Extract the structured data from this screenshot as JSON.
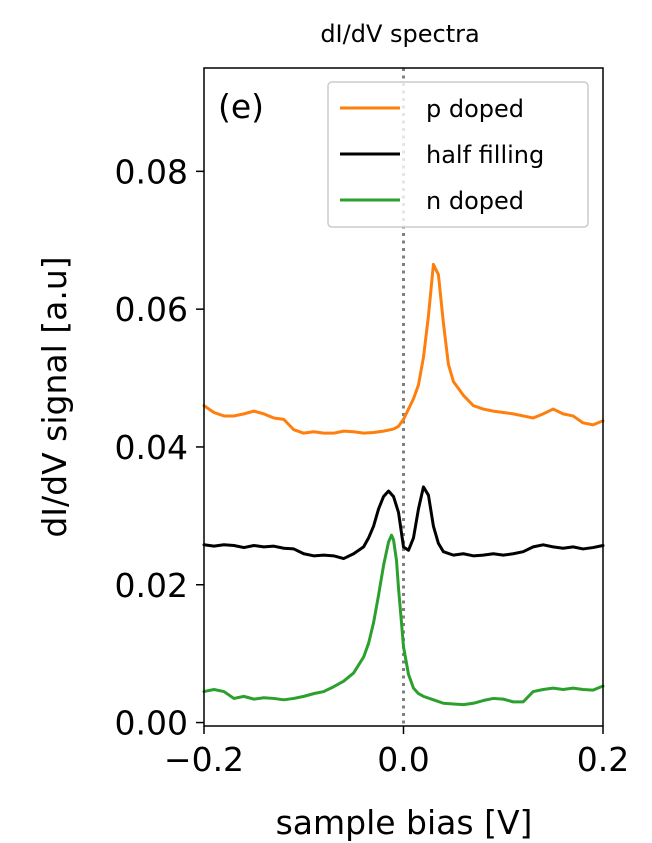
{
  "chart_data": {
    "type": "line",
    "title": "dI/dV spectra",
    "panel_label": "(e)",
    "xlabel": "sample bias [V]",
    "ylabel": "dI/dV signal [a.u]",
    "xlim": [
      -0.2,
      0.2
    ],
    "ylim": [
      -0.0005,
      0.095
    ],
    "xticks": [
      -0.2,
      0.0,
      0.2
    ],
    "xtick_labels": [
      "−0.2",
      "0.0",
      "0.2"
    ],
    "yticks": [
      0.0,
      0.02,
      0.04,
      0.06,
      0.08
    ],
    "ytick_labels": [
      "0.00",
      "0.02",
      "0.04",
      "0.06",
      "0.08"
    ],
    "grid": false,
    "legend_position": "top-right",
    "reference_line": {
      "x": 0.0,
      "style": "dotted",
      "color": "#808080"
    },
    "series": [
      {
        "name": "p doped",
        "color": "#ff7f0e",
        "points": [
          [
            -0.2,
            0.046
          ],
          [
            -0.19,
            0.045
          ],
          [
            -0.18,
            0.0445
          ],
          [
            -0.17,
            0.0445
          ],
          [
            -0.16,
            0.0448
          ],
          [
            -0.15,
            0.0452
          ],
          [
            -0.14,
            0.0448
          ],
          [
            -0.13,
            0.0442
          ],
          [
            -0.12,
            0.044
          ],
          [
            -0.11,
            0.0425
          ],
          [
            -0.1,
            0.042
          ],
          [
            -0.09,
            0.0422
          ],
          [
            -0.08,
            0.042
          ],
          [
            -0.07,
            0.042
          ],
          [
            -0.06,
            0.0423
          ],
          [
            -0.05,
            0.0422
          ],
          [
            -0.04,
            0.042
          ],
          [
            -0.03,
            0.0421
          ],
          [
            -0.02,
            0.0423
          ],
          [
            -0.01,
            0.0426
          ],
          [
            -0.005,
            0.043
          ],
          [
            0.0,
            0.044
          ],
          [
            0.005,
            0.0455
          ],
          [
            0.01,
            0.047
          ],
          [
            0.015,
            0.049
          ],
          [
            0.02,
            0.053
          ],
          [
            0.025,
            0.059
          ],
          [
            0.03,
            0.0665
          ],
          [
            0.035,
            0.065
          ],
          [
            0.04,
            0.058
          ],
          [
            0.045,
            0.052
          ],
          [
            0.05,
            0.0495
          ],
          [
            0.06,
            0.0475
          ],
          [
            0.07,
            0.046
          ],
          [
            0.08,
            0.0455
          ],
          [
            0.09,
            0.0452
          ],
          [
            0.1,
            0.045
          ],
          [
            0.11,
            0.0448
          ],
          [
            0.12,
            0.0445
          ],
          [
            0.13,
            0.0442
          ],
          [
            0.14,
            0.0448
          ],
          [
            0.15,
            0.0455
          ],
          [
            0.16,
            0.0448
          ],
          [
            0.17,
            0.0445
          ],
          [
            0.18,
            0.0435
          ],
          [
            0.19,
            0.0432
          ],
          [
            0.2,
            0.0438
          ]
        ]
      },
      {
        "name": "half filling",
        "color": "#000000",
        "points": [
          [
            -0.2,
            0.0258
          ],
          [
            -0.19,
            0.0256
          ],
          [
            -0.18,
            0.0258
          ],
          [
            -0.17,
            0.0257
          ],
          [
            -0.16,
            0.0254
          ],
          [
            -0.15,
            0.0257
          ],
          [
            -0.14,
            0.0255
          ],
          [
            -0.13,
            0.0256
          ],
          [
            -0.12,
            0.0253
          ],
          [
            -0.11,
            0.0252
          ],
          [
            -0.1,
            0.0245
          ],
          [
            -0.09,
            0.0242
          ],
          [
            -0.08,
            0.0243
          ],
          [
            -0.07,
            0.0242
          ],
          [
            -0.06,
            0.0238
          ],
          [
            -0.05,
            0.0245
          ],
          [
            -0.04,
            0.0255
          ],
          [
            -0.035,
            0.0268
          ],
          [
            -0.03,
            0.0285
          ],
          [
            -0.025,
            0.031
          ],
          [
            -0.02,
            0.0328
          ],
          [
            -0.015,
            0.0336
          ],
          [
            -0.01,
            0.0328
          ],
          [
            -0.005,
            0.0305
          ],
          [
            0.0,
            0.0255
          ],
          [
            0.005,
            0.025
          ],
          [
            0.01,
            0.0268
          ],
          [
            0.015,
            0.031
          ],
          [
            0.02,
            0.0342
          ],
          [
            0.025,
            0.033
          ],
          [
            0.03,
            0.0285
          ],
          [
            0.035,
            0.026
          ],
          [
            0.04,
            0.0248
          ],
          [
            0.05,
            0.0243
          ],
          [
            0.06,
            0.0245
          ],
          [
            0.07,
            0.0242
          ],
          [
            0.08,
            0.0243
          ],
          [
            0.09,
            0.0245
          ],
          [
            0.1,
            0.0243
          ],
          [
            0.11,
            0.0245
          ],
          [
            0.12,
            0.0248
          ],
          [
            0.13,
            0.0255
          ],
          [
            0.14,
            0.0258
          ],
          [
            0.15,
            0.0255
          ],
          [
            0.16,
            0.0253
          ],
          [
            0.17,
            0.0255
          ],
          [
            0.18,
            0.0252
          ],
          [
            0.19,
            0.0254
          ],
          [
            0.2,
            0.0257
          ]
        ]
      },
      {
        "name": "n doped",
        "color": "#2ca02c",
        "points": [
          [
            -0.2,
            0.0045
          ],
          [
            -0.19,
            0.0048
          ],
          [
            -0.18,
            0.0045
          ],
          [
            -0.17,
            0.0035
          ],
          [
            -0.16,
            0.0038
          ],
          [
            -0.15,
            0.0034
          ],
          [
            -0.14,
            0.0036
          ],
          [
            -0.13,
            0.0035
          ],
          [
            -0.12,
            0.0033
          ],
          [
            -0.11,
            0.0035
          ],
          [
            -0.1,
            0.0038
          ],
          [
            -0.09,
            0.0042
          ],
          [
            -0.08,
            0.0045
          ],
          [
            -0.07,
            0.0052
          ],
          [
            -0.06,
            0.006
          ],
          [
            -0.05,
            0.0072
          ],
          [
            -0.04,
            0.0095
          ],
          [
            -0.035,
            0.0115
          ],
          [
            -0.03,
            0.0145
          ],
          [
            -0.025,
            0.0185
          ],
          [
            -0.02,
            0.0228
          ],
          [
            -0.015,
            0.0262
          ],
          [
            -0.012,
            0.0272
          ],
          [
            -0.01,
            0.0265
          ],
          [
            -0.007,
            0.0235
          ],
          [
            -0.005,
            0.0195
          ],
          [
            -0.002,
            0.0145
          ],
          [
            0.0,
            0.011
          ],
          [
            0.005,
            0.007
          ],
          [
            0.01,
            0.005
          ],
          [
            0.015,
            0.0042
          ],
          [
            0.02,
            0.0038
          ],
          [
            0.03,
            0.0033
          ],
          [
            0.04,
            0.0028
          ],
          [
            0.05,
            0.0027
          ],
          [
            0.06,
            0.0026
          ],
          [
            0.07,
            0.0028
          ],
          [
            0.08,
            0.0032
          ],
          [
            0.09,
            0.0035
          ],
          [
            0.1,
            0.0034
          ],
          [
            0.11,
            0.003
          ],
          [
            0.12,
            0.003
          ],
          [
            0.13,
            0.0045
          ],
          [
            0.14,
            0.0048
          ],
          [
            0.15,
            0.005
          ],
          [
            0.16,
            0.0048
          ],
          [
            0.17,
            0.005
          ],
          [
            0.18,
            0.0048
          ],
          [
            0.19,
            0.0047
          ],
          [
            0.2,
            0.0053
          ]
        ]
      }
    ]
  }
}
